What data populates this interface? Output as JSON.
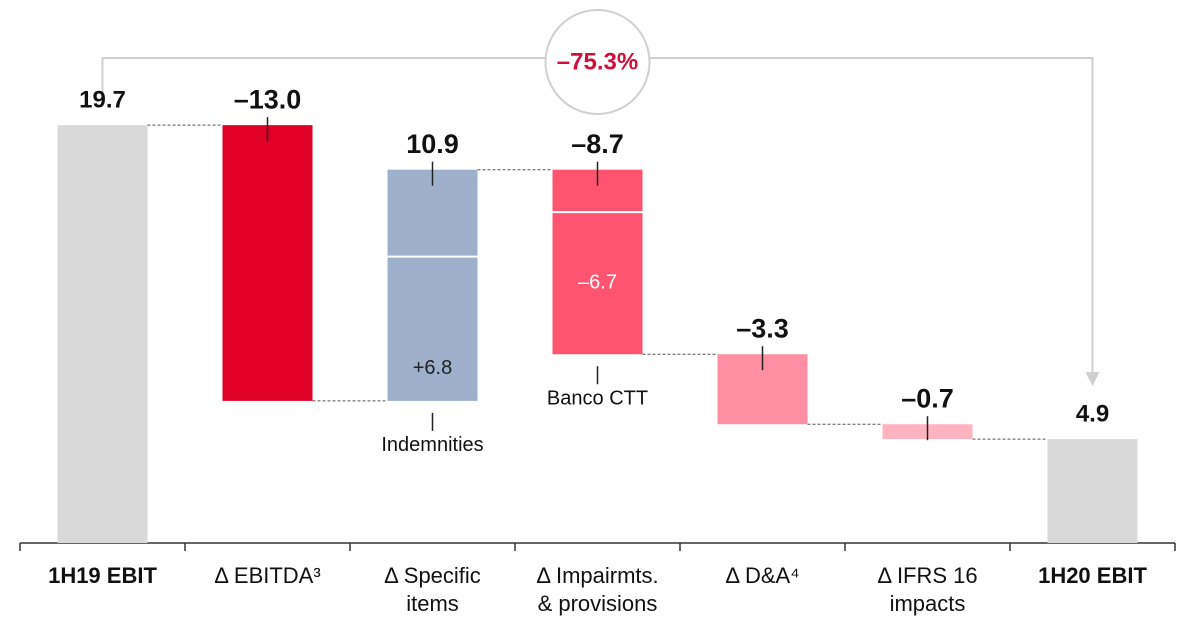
{
  "chart_data": {
    "type": "waterfall",
    "categories": [
      "1H19 EBIT",
      "Δ EBITDA³",
      "Δ Specific\nitems",
      "Δ Impairmts.\n& provisions",
      "Δ D&A⁴",
      "Δ IFRS 16\nimpacts",
      "1H20 EBIT"
    ],
    "values": [
      19.7,
      -13.0,
      10.9,
      -8.7,
      -3.3,
      -0.7,
      4.9
    ],
    "value_labels": [
      "19.7",
      "–13.0",
      "10.9",
      "–8.7",
      "–3.3",
      "–0.7",
      "4.9"
    ],
    "is_total": [
      true,
      false,
      false,
      false,
      false,
      false,
      true
    ],
    "colors": [
      "#d9d9d9",
      "#e00025",
      "#9eb0cc",
      "#ff5470",
      "#ff8fa3",
      "#ffb3c1",
      "#d9d9d9"
    ],
    "breakdown": [
      null,
      null,
      {
        "value": 6.8,
        "label": "+6.8",
        "name": "Indemnities",
        "text_color": "#222222"
      },
      {
        "value": -6.7,
        "label": "–6.7",
        "name": "Banco CTT",
        "text_color": "#ffffff"
      },
      null,
      null,
      null
    ],
    "change_label": "–75.3%",
    "ylim": [
      0,
      25.6
    ]
  }
}
